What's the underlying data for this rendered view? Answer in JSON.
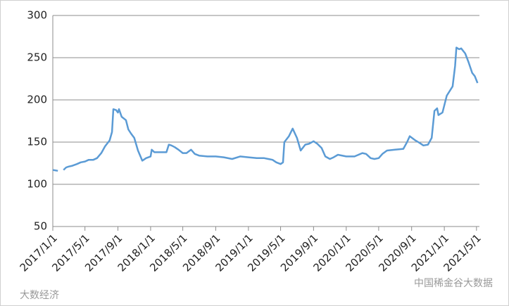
{
  "chart_data": {
    "type": "line",
    "x": [
      "2017/1/1",
      "2017/1/20",
      "2017/1/28",
      "2017/2/10",
      "2017/2/20",
      "2017/3/1",
      "2017/3/15",
      "2017/4/1",
      "2017/4/15",
      "2017/5/1",
      "2017/5/15",
      "2017/6/1",
      "2017/6/15",
      "2017/7/1",
      "2017/7/15",
      "2017/8/1",
      "2017/8/10",
      "2017/8/15",
      "2017/8/25",
      "2017/9/1",
      "2017/9/5",
      "2017/9/15",
      "2017/10/1",
      "2017/10/10",
      "2017/10/20",
      "2017/11/1",
      "2017/11/15",
      "2017/12/1",
      "2017/12/15",
      "2018/1/1",
      "2018/1/5",
      "2018/1/15",
      "2018/2/1",
      "2018/3/1",
      "2018/3/10",
      "2018/3/20",
      "2018/4/1",
      "2018/4/15",
      "2018/5/1",
      "2018/5/15",
      "2018/6/1",
      "2018/6/15",
      "2018/7/1",
      "2018/8/1",
      "2018/9/1",
      "2018/10/1",
      "2018/11/1",
      "2018/12/1",
      "2019/1/1",
      "2019/2/1",
      "2019/3/1",
      "2019/4/1",
      "2019/4/15",
      "2019/5/1",
      "2019/5/10",
      "2019/5/15",
      "2019/6/1",
      "2019/6/15",
      "2019/7/1",
      "2019/7/15",
      "2019/8/1",
      "2019/8/15",
      "2019/9/1",
      "2019/9/15",
      "2019/10/1",
      "2019/10/15",
      "2019/11/1",
      "2019/11/15",
      "2019/12/1",
      "2020/1/1",
      "2020/2/1",
      "2020/3/1",
      "2020/3/15",
      "2020/4/1",
      "2020/4/15",
      "2020/5/1",
      "2020/5/15",
      "2020/6/1",
      "2020/7/1",
      "2020/8/1",
      "2020/8/15",
      "2020/8/25",
      "2020/9/15",
      "2020/10/1",
      "2020/10/15",
      "2020/11/1",
      "2020/11/15",
      "2020/11/25",
      "2020/12/5",
      "2020/12/10",
      "2020/12/25",
      "2021/1/10",
      "2021/1/20",
      "2021/2/1",
      "2021/2/10",
      "2021/2/15",
      "2021/2/25",
      "2021/3/5",
      "2021/3/20",
      "2021/4/1",
      "2021/4/15",
      "2021/4/25",
      "2021/5/5"
    ],
    "series": [
      {
        "color": "#5b9bd5",
        "values": [
          117,
          116,
          null,
          117,
          120,
          121,
          122,
          124,
          126,
          127,
          129,
          129,
          131,
          137,
          145,
          152,
          162,
          189,
          188,
          185,
          189,
          180,
          176,
          165,
          160,
          155,
          140,
          128,
          131,
          133,
          141,
          138,
          138,
          138,
          147,
          146,
          144,
          141,
          137,
          137,
          141,
          136,
          134,
          133,
          133,
          132,
          130,
          133,
          132,
          131,
          131,
          129,
          126,
          124,
          126,
          150,
          157,
          166,
          155,
          140,
          147,
          148,
          151,
          148,
          143,
          133,
          130,
          132,
          135,
          133,
          133,
          137,
          136,
          131,
          130,
          131,
          136,
          140,
          141,
          142,
          150,
          157,
          152,
          149,
          146,
          147,
          155,
          187,
          190,
          182,
          185,
          205,
          210,
          216,
          240,
          262,
          260,
          261,
          255,
          245,
          232,
          228,
          220
        ]
      }
    ],
    "xlim": [
      "2017/1/1",
      "2021/5/12"
    ],
    "xticks": [
      "2017/1/1",
      "2017/5/1",
      "2017/9/1",
      "2018/1/1",
      "2018/5/1",
      "2018/9/1",
      "2019/1/1",
      "2019/5/1",
      "2019/9/1",
      "2020/1/1",
      "2020/5/1",
      "2020/9/1",
      "2021/1/1",
      "2021/5/1"
    ],
    "ylim": [
      50,
      300
    ],
    "yticks": [
      50,
      100,
      150,
      200,
      250,
      300
    ],
    "grid": true
  },
  "watermarks": [
    "大数经济",
    "中国稀金谷大数据"
  ]
}
